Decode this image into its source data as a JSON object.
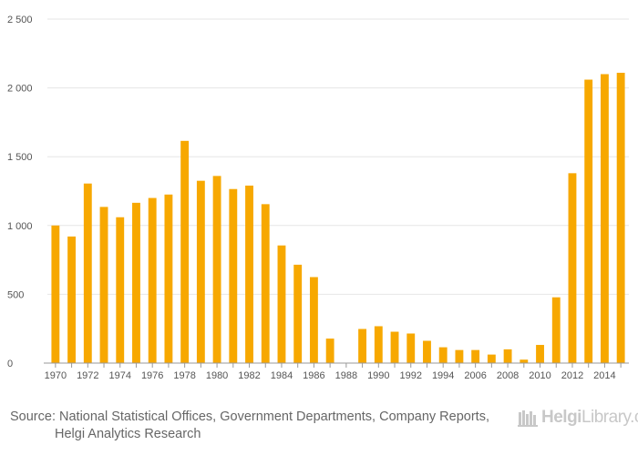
{
  "chart_data": {
    "type": "bar",
    "title": "",
    "xlabel": "",
    "ylabel": "",
    "ylim": [
      0,
      2500
    ],
    "yticks": [
      0,
      500,
      1000,
      1500,
      2000,
      2500
    ],
    "ytick_labels": [
      "0",
      "500",
      "1 000",
      "1 500",
      "2 000",
      "2 500"
    ],
    "bar_color": "#f7a800",
    "grid": true,
    "categories": [
      "1970",
      "1971",
      "1972",
      "1973",
      "1974",
      "1975",
      "1976",
      "1977",
      "1978",
      "1979",
      "1980",
      "1981",
      "1982",
      "1983",
      "1984",
      "1985",
      "1986",
      "1987",
      "1988",
      "1989",
      "1990",
      "1991",
      "1992",
      "1993",
      "1994",
      "1995",
      "2006",
      "2007",
      "2008",
      "2009",
      "2010",
      "2011",
      "2012",
      "2013",
      "2014",
      "2015"
    ],
    "xtick_labels": [
      "1970",
      "",
      "1972",
      "",
      "1974",
      "",
      "1976",
      "",
      "1978",
      "",
      "1980",
      "",
      "1982",
      "",
      "1984",
      "",
      "1986",
      "",
      "1988",
      "",
      "1990",
      "",
      "1992",
      "",
      "1994",
      "",
      "2006",
      "",
      "2008",
      "",
      "2010",
      "",
      "2012",
      "",
      "2014",
      ""
    ],
    "values": [
      1000,
      920,
      1305,
      1135,
      1060,
      1165,
      1200,
      1225,
      1615,
      1325,
      1360,
      1265,
      1290,
      1155,
      855,
      715,
      625,
      178,
      0,
      248,
      268,
      228,
      215,
      162,
      115,
      95,
      95,
      62,
      100,
      25,
      132,
      478,
      1380,
      2060,
      2100,
      2110
    ]
  },
  "footer": {
    "source_line1": "Source: National Statistical Offices, Government Departments, Company Reports,",
    "source_line2": "Helgi Analytics Research"
  },
  "logo": {
    "part1": "Helgi",
    "part2": "Library",
    "suffix": ".com"
  }
}
